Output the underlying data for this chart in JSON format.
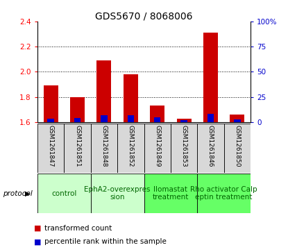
{
  "title": "GDS5670 / 8068006",
  "samples": [
    "GSM1261847",
    "GSM1261851",
    "GSM1261848",
    "GSM1261852",
    "GSM1261849",
    "GSM1261853",
    "GSM1261846",
    "GSM1261850"
  ],
  "red_values": [
    1.89,
    1.8,
    2.09,
    1.98,
    1.73,
    1.63,
    2.31,
    1.66
  ],
  "blue_values": [
    3.5,
    4.5,
    7.0,
    7.0,
    5.0,
    2.0,
    8.5,
    2.5
  ],
  "ylim_left": [
    1.6,
    2.4
  ],
  "ylim_right": [
    0,
    100
  ],
  "yticks_left": [
    1.6,
    1.8,
    2.0,
    2.2,
    2.4
  ],
  "yticks_right": [
    0,
    25,
    50,
    75,
    100
  ],
  "ytick_labels_right": [
    "0",
    "25",
    "50",
    "75",
    "100%"
  ],
  "groups": [
    {
      "label": "control",
      "indices": [
        0,
        1
      ],
      "color": "#ccffcc"
    },
    {
      "label": "EphA2-overexpres\nsion",
      "indices": [
        2,
        3
      ],
      "color": "#ccffcc"
    },
    {
      "label": "Ilomastat\ntreatment",
      "indices": [
        4,
        5
      ],
      "color": "#66ff66"
    },
    {
      "label": "Rho activator Calp\neptin treatment",
      "indices": [
        6,
        7
      ],
      "color": "#66ff66"
    }
  ],
  "protocol_label": "protocol",
  "legend_red": "transformed count",
  "legend_blue": "percentile rank within the sample",
  "bar_width": 0.55,
  "baseline": 1.6,
  "blue_bar_width": 0.25,
  "title_fontsize": 10,
  "tick_fontsize": 7.5,
  "sample_fontsize": 6.5,
  "group_label_fontsize": 7.5,
  "red_color": "#cc0000",
  "blue_color": "#0000cc",
  "sample_box_color": "#d8d8d8",
  "background_color": "#ffffff"
}
